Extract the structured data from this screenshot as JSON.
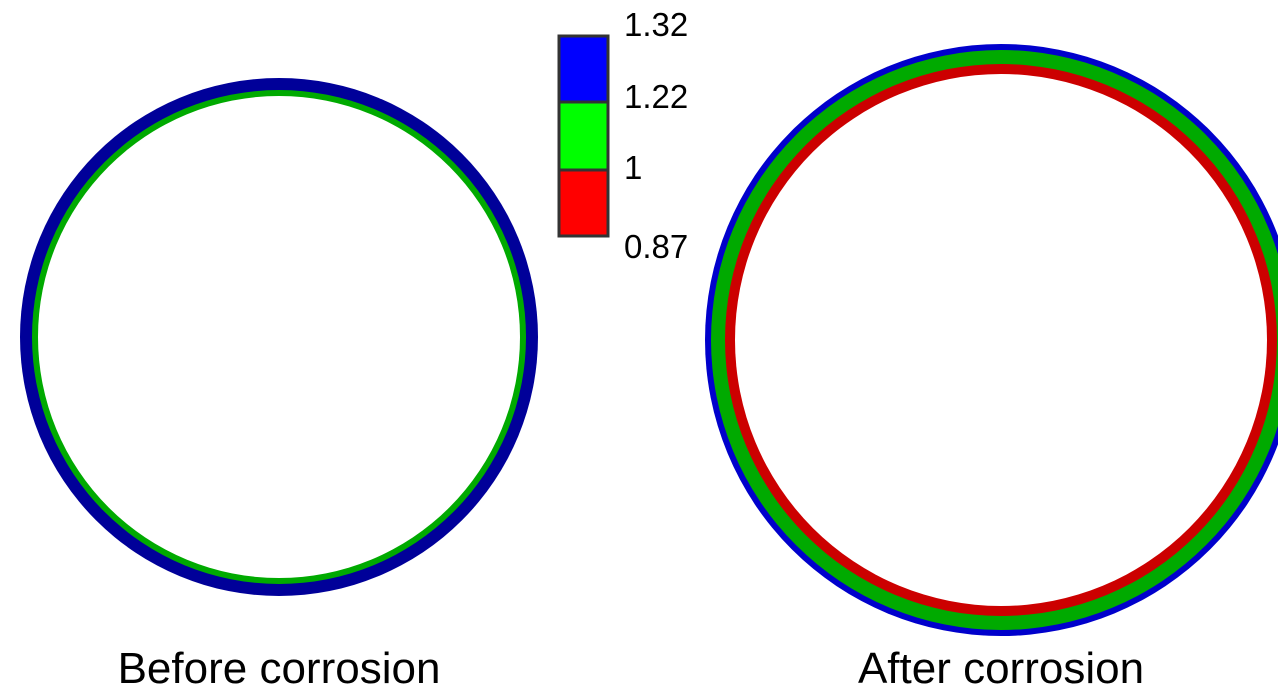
{
  "colorbar": {
    "tick_labels": [
      "1.32",
      "1.22",
      "1",
      "0.87"
    ],
    "bands": [
      {
        "color": "#0000ff"
      },
      {
        "color": "#00ff00"
      },
      {
        "color": "#ff0000"
      }
    ],
    "border_color": "#333333"
  },
  "before": {
    "caption": "Before corrosion",
    "layers": [
      {
        "color": "#000099"
      },
      {
        "color": "#00aa00"
      }
    ]
  },
  "after": {
    "caption": "After corrosion",
    "layers": [
      {
        "color": "#0000cc"
      },
      {
        "color": "#00aa00"
      },
      {
        "color": "#cc0000"
      }
    ]
  }
}
